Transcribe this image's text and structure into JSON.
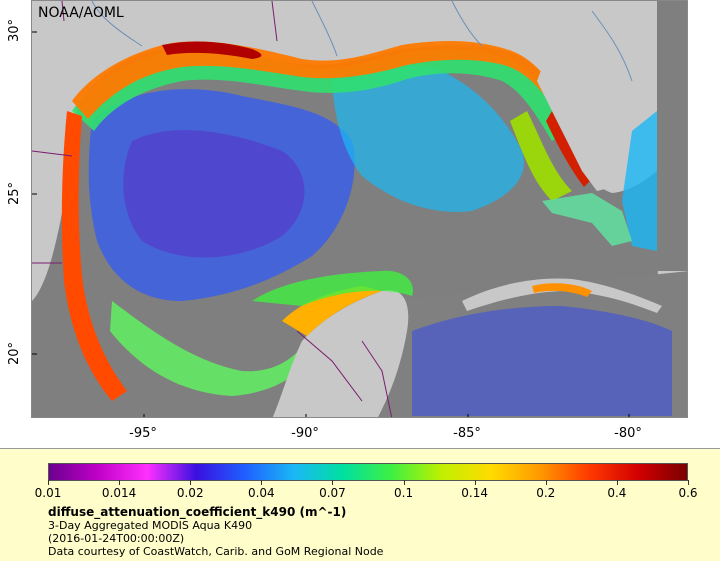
{
  "map": {
    "credit": "NOAA/AOML",
    "lat_labels": [
      "30°",
      "25°",
      "20°"
    ],
    "lon_labels": [
      "-95°",
      "-90°",
      "-85°",
      "-80°"
    ],
    "colors": {
      "land": "#c8c8c8",
      "nodata": "#7f7f7f",
      "border_line": "#7a1b6e",
      "river_line": "#6c8fb8"
    }
  },
  "legend": {
    "colorbar_ticks": [
      "0.01",
      "0.014",
      "0.02",
      "0.04",
      "0.07",
      "0.1",
      "0.14",
      "0.2",
      "0.4",
      "0.6"
    ],
    "colorbar_colors": [
      "#6b008e",
      "#c000c8",
      "#ff30ff",
      "#3a10e0",
      "#1f60ff",
      "#1ab8f5",
      "#00e0a0",
      "#40f040",
      "#c0f000",
      "#ffdc00",
      "#ff9a00",
      "#ff3a00",
      "#d20000",
      "#7a0000"
    ],
    "variable_name": "diffuse_attenuation_coefficient_k490 (m^-1)",
    "dataset": "3-Day Aggregated MODIS Aqua K490",
    "time": "(2016-01-24T00:00:00Z)",
    "courtesy": "Data courtesy of CoastWatch, Carib. and GoM Regional Node"
  }
}
